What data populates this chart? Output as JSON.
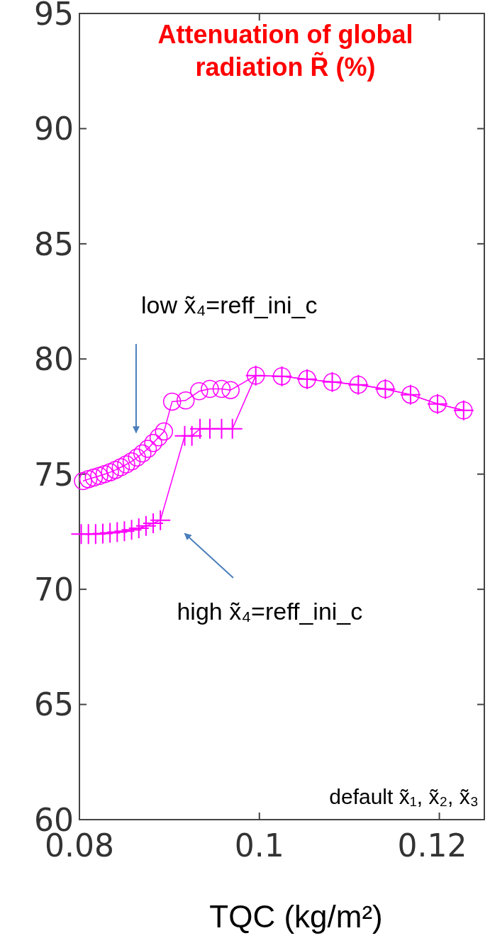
{
  "chart_data": {
    "type": "line",
    "title": "Attenuation of global radiation R̃ (%)",
    "xlabel": "TQC (kg/m²)",
    "xlim": [
      0.08,
      0.125
    ],
    "xticks": [
      0.08,
      0.1,
      0.12
    ],
    "ylim": [
      60,
      95
    ],
    "yticks": [
      60,
      65,
      70,
      75,
      80,
      85,
      90,
      95
    ],
    "grid": false,
    "line_style": "solid",
    "series": [
      {
        "color": "#ff00ff",
        "marker": "circle",
        "x": [
          0.0804,
          0.081,
          0.0816,
          0.0822,
          0.0828,
          0.0834,
          0.084,
          0.0846,
          0.0852,
          0.0858,
          0.0864,
          0.087,
          0.0876,
          0.0882,
          0.0888,
          0.0894,
          0.0903,
          0.0918,
          0.0933,
          0.0945,
          0.0958,
          0.0968,
          0.0996,
          0.1025,
          0.1053,
          0.1081,
          0.111,
          0.114,
          0.1168,
          0.1198,
          0.1227
        ],
        "values": [
          74.7,
          74.78,
          74.85,
          74.92,
          75.0,
          75.08,
          75.18,
          75.3,
          75.42,
          75.55,
          75.72,
          75.9,
          76.1,
          76.35,
          76.6,
          76.85,
          78.15,
          78.2,
          78.6,
          78.7,
          78.7,
          78.65,
          79.28,
          79.25,
          79.12,
          79.0,
          78.88,
          78.69,
          78.45,
          78.05,
          77.77
        ]
      },
      {
        "color": "#ff00ff",
        "marker": "cross",
        "x": [
          0.0802,
          0.081,
          0.0818,
          0.0826,
          0.0834,
          0.0842,
          0.085,
          0.0858,
          0.0866,
          0.0874,
          0.0882,
          0.089,
          0.0917,
          0.0925,
          0.0934,
          0.0945,
          0.0958,
          0.097,
          0.0996,
          0.1025,
          0.1053,
          0.1081,
          0.111,
          0.114,
          0.1168,
          0.1198,
          0.1227
        ],
        "values": [
          72.4,
          72.4,
          72.4,
          72.42,
          72.45,
          72.48,
          72.52,
          72.58,
          72.65,
          72.75,
          72.87,
          73.0,
          76.66,
          76.66,
          76.97,
          76.97,
          76.97,
          76.97,
          79.28,
          79.25,
          79.12,
          79.0,
          78.88,
          78.69,
          78.45,
          78.05,
          77.77
        ]
      }
    ],
    "annotations": [
      "low x̃₄=reff_ini_c",
      "high x̃₄=reff_ini_c",
      "default x̃₁, x̃₂, x̃₃"
    ]
  }
}
